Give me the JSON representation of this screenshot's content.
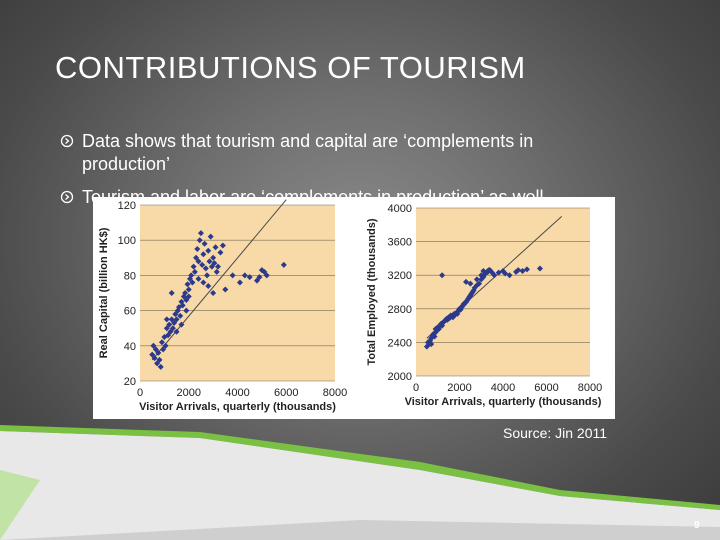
{
  "title": "CONTRIBUTIONS OF TOURISM",
  "bullets": [
    "Data shows that tourism and capital are ‘complements in production’",
    "Tourism and labor are ‘complements in production’ as well"
  ],
  "source": "Source: Jin 2011",
  "page_number": "9",
  "colors": {
    "plot_background": "#F8D9A8",
    "marker": "#2B3A8C",
    "trend_line": "#4a4a4a",
    "accent": "#7AC143"
  },
  "chart_data": [
    {
      "type": "scatter",
      "xlabel": "Visitor Arrivals, quarterly (thousands)",
      "ylabel": "Real Capital (billion HK$)",
      "xlim": [
        0,
        8000
      ],
      "ylim": [
        20,
        120
      ],
      "xticks": [
        "0",
        "2000",
        "4000",
        "6000",
        "8000"
      ],
      "yticks": [
        "20",
        "40",
        "60",
        "80",
        "100",
        "120"
      ],
      "trend_line": [
        [
          500,
          32
        ],
        [
          6000,
          123
        ]
      ],
      "points": [
        [
          500,
          35
        ],
        [
          550,
          40
        ],
        [
          600,
          33
        ],
        [
          650,
          38
        ],
        [
          700,
          30
        ],
        [
          750,
          36
        ],
        [
          800,
          32
        ],
        [
          850,
          28
        ],
        [
          900,
          42
        ],
        [
          950,
          38
        ],
        [
          1000,
          45
        ],
        [
          1050,
          40
        ],
        [
          1100,
          50
        ],
        [
          1150,
          46
        ],
        [
          1200,
          52
        ],
        [
          1250,
          48
        ],
        [
          1300,
          55
        ],
        [
          1350,
          50
        ],
        [
          1400,
          53
        ],
        [
          1450,
          58
        ],
        [
          1500,
          55
        ],
        [
          1550,
          60
        ],
        [
          1600,
          62
        ],
        [
          1650,
          57
        ],
        [
          1700,
          65
        ],
        [
          1750,
          63
        ],
        [
          1800,
          68
        ],
        [
          1850,
          70
        ],
        [
          1900,
          66
        ],
        [
          1950,
          75
        ],
        [
          2000,
          72
        ],
        [
          2050,
          78
        ],
        [
          2100,
          80
        ],
        [
          2150,
          76
        ],
        [
          2200,
          85
        ],
        [
          2250,
          82
        ],
        [
          2300,
          90
        ],
        [
          2350,
          95
        ],
        [
          2400,
          88
        ],
        [
          2450,
          100
        ],
        [
          2500,
          104
        ],
        [
          2550,
          86
        ],
        [
          2600,
          92
        ],
        [
          2650,
          98
        ],
        [
          2700,
          84
        ],
        [
          2750,
          80
        ],
        [
          2800,
          94
        ],
        [
          2850,
          88
        ],
        [
          2900,
          102
        ],
        [
          2950,
          85
        ],
        [
          3000,
          90
        ],
        [
          3050,
          87
        ],
        [
          3100,
          96
        ],
        [
          3150,
          82
        ],
        [
          3200,
          85
        ],
        [
          3300,
          93
        ],
        [
          3400,
          97
        ],
        [
          3500,
          72
        ],
        [
          3800,
          80
        ],
        [
          4100,
          76
        ],
        [
          4300,
          80
        ],
        [
          4500,
          79
        ],
        [
          4800,
          77
        ],
        [
          4900,
          79
        ],
        [
          5000,
          83
        ],
        [
          5100,
          82
        ],
        [
          5200,
          80
        ],
        [
          5900,
          86
        ],
        [
          1300,
          70
        ],
        [
          2000,
          68
        ],
        [
          2400,
          78
        ],
        [
          2600,
          76
        ],
        [
          2800,
          74
        ],
        [
          3000,
          70
        ],
        [
          1900,
          60
        ],
        [
          1700,
          52
        ],
        [
          1100,
          55
        ],
        [
          1500,
          48
        ]
      ]
    },
    {
      "type": "scatter",
      "xlabel": "Visitor Arrivals, quarterly (thousands)",
      "ylabel": "Total Employed (thousands)",
      "xlim": [
        0,
        8000
      ],
      "ylim": [
        2000,
        4000
      ],
      "xticks": [
        "0",
        "2000",
        "4000",
        "6000",
        "8000"
      ],
      "yticks": [
        "2000",
        "2400",
        "2800",
        "3200",
        "3600",
        "4000"
      ],
      "trend_line": [
        [
          500,
          2450
        ],
        [
          6700,
          3900
        ]
      ],
      "points": [
        [
          500,
          2350
        ],
        [
          550,
          2400
        ],
        [
          600,
          2380
        ],
        [
          650,
          2420
        ],
        [
          700,
          2450
        ],
        [
          750,
          2480
        ],
        [
          800,
          2500
        ],
        [
          850,
          2470
        ],
        [
          900,
          2520
        ],
        [
          950,
          2540
        ],
        [
          1000,
          2580
        ],
        [
          1050,
          2560
        ],
        [
          1100,
          2600
        ],
        [
          1150,
          2620
        ],
        [
          1200,
          2600
        ],
        [
          1250,
          2640
        ],
        [
          1300,
          2650
        ],
        [
          1350,
          2660
        ],
        [
          1400,
          2680
        ],
        [
          1450,
          2670
        ],
        [
          1500,
          2700
        ],
        [
          1550,
          2690
        ],
        [
          1600,
          2720
        ],
        [
          1650,
          2710
        ],
        [
          1700,
          2700
        ],
        [
          1750,
          2740
        ],
        [
          1800,
          2730
        ],
        [
          1850,
          2750
        ],
        [
          1900,
          2760
        ],
        [
          1950,
          2780
        ],
        [
          2000,
          2800
        ],
        [
          2050,
          2790
        ],
        [
          2100,
          2820
        ],
        [
          2150,
          2840
        ],
        [
          2200,
          2850
        ],
        [
          2250,
          2870
        ],
        [
          2300,
          2880
        ],
        [
          2350,
          2900
        ],
        [
          2400,
          2920
        ],
        [
          2450,
          2940
        ],
        [
          2500,
          2960
        ],
        [
          2550,
          2980
        ],
        [
          2600,
          3000
        ],
        [
          2650,
          3020
        ],
        [
          2700,
          3050
        ],
        [
          2800,
          3080
        ],
        [
          2900,
          3100
        ],
        [
          3000,
          3150
        ],
        [
          3100,
          3180
        ],
        [
          3200,
          3220
        ],
        [
          3300,
          3250
        ],
        [
          3400,
          3260
        ],
        [
          3500,
          3230
        ],
        [
          3600,
          3200
        ],
        [
          2300,
          3120
        ],
        [
          2500,
          3100
        ],
        [
          1200,
          3200
        ],
        [
          2800,
          3150
        ],
        [
          3100,
          3250
        ],
        [
          3300,
          3240
        ],
        [
          3800,
          3230
        ],
        [
          4000,
          3250
        ],
        [
          4100,
          3220
        ],
        [
          4300,
          3200
        ],
        [
          4600,
          3240
        ],
        [
          4700,
          3260
        ],
        [
          4900,
          3250
        ],
        [
          5100,
          3270
        ],
        [
          5700,
          3280
        ],
        [
          3000,
          3200
        ],
        [
          3350,
          3260
        ],
        [
          1900,
          2740
        ],
        [
          2200,
          2860
        ],
        [
          700,
          2380
        ],
        [
          900,
          2560
        ]
      ]
    }
  ]
}
